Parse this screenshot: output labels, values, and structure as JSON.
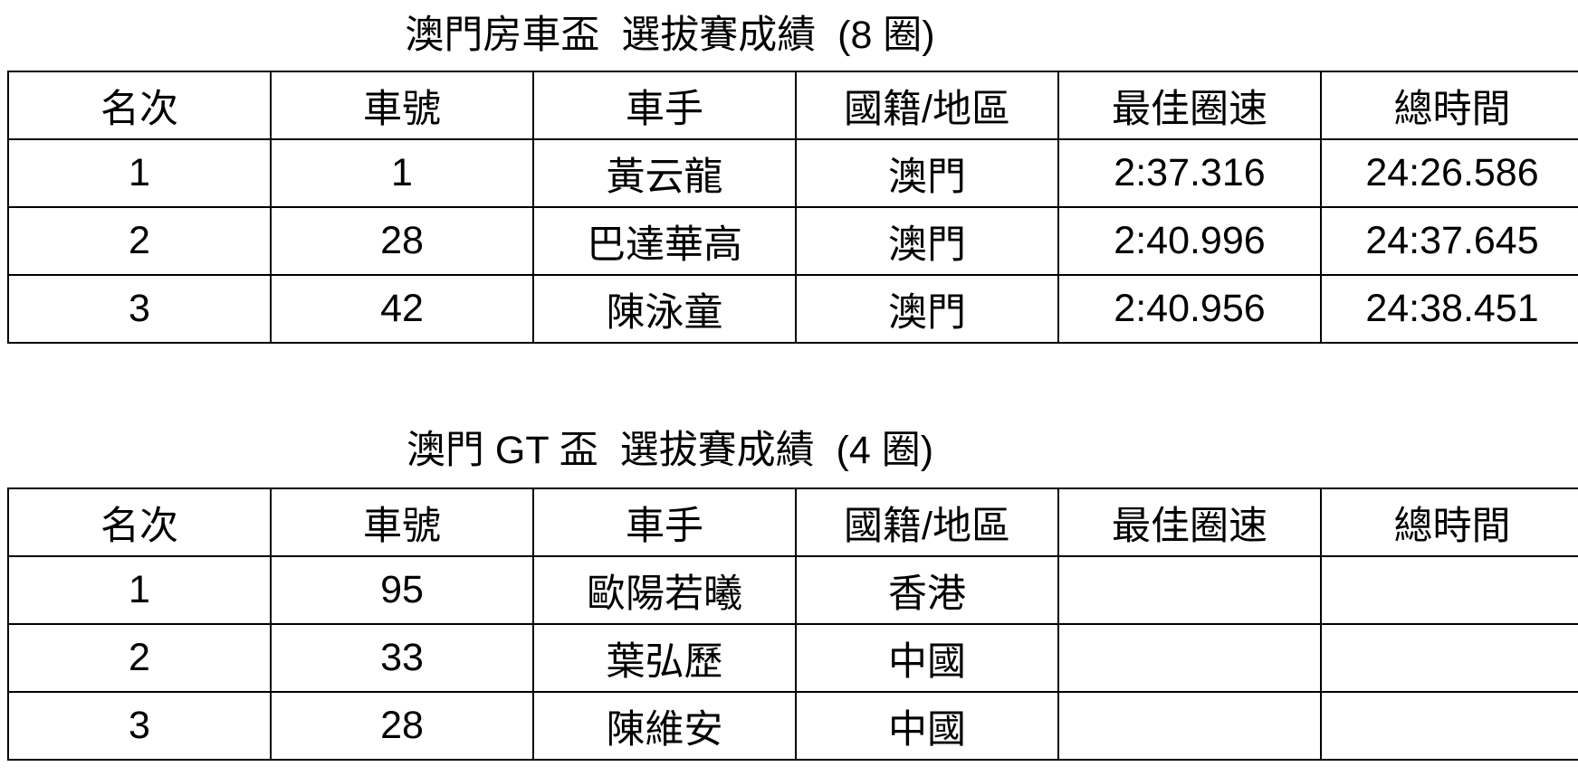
{
  "tables": [
    {
      "title": "澳門房車盃  選拔賽成績  (8 圈)",
      "headers": [
        "名次",
        "車號",
        "車手",
        "國籍/地區",
        "最佳圈速",
        "總時間"
      ],
      "rows": [
        [
          "1",
          "1",
          "黃云龍",
          "澳門",
          "2:37.316",
          "24:26.586"
        ],
        [
          "2",
          "28",
          "巴達華高",
          "澳門",
          "2:40.996",
          "24:37.645"
        ],
        [
          "3",
          "42",
          "陳泳童",
          "澳門",
          "2:40.956",
          "24:38.451"
        ]
      ]
    },
    {
      "title": "澳門 GT 盃  選拔賽成績  (4 圈)",
      "headers": [
        "名次",
        "車號",
        "車手",
        "國籍/地區",
        "最佳圈速",
        "總時間"
      ],
      "rows": [
        [
          "1",
          "95",
          "歐陽若曦",
          "香港",
          "",
          ""
        ],
        [
          "2",
          "33",
          "葉弘歷",
          "中國",
          "",
          ""
        ],
        [
          "3",
          "28",
          "陳維安",
          "中國",
          "",
          ""
        ]
      ]
    }
  ]
}
